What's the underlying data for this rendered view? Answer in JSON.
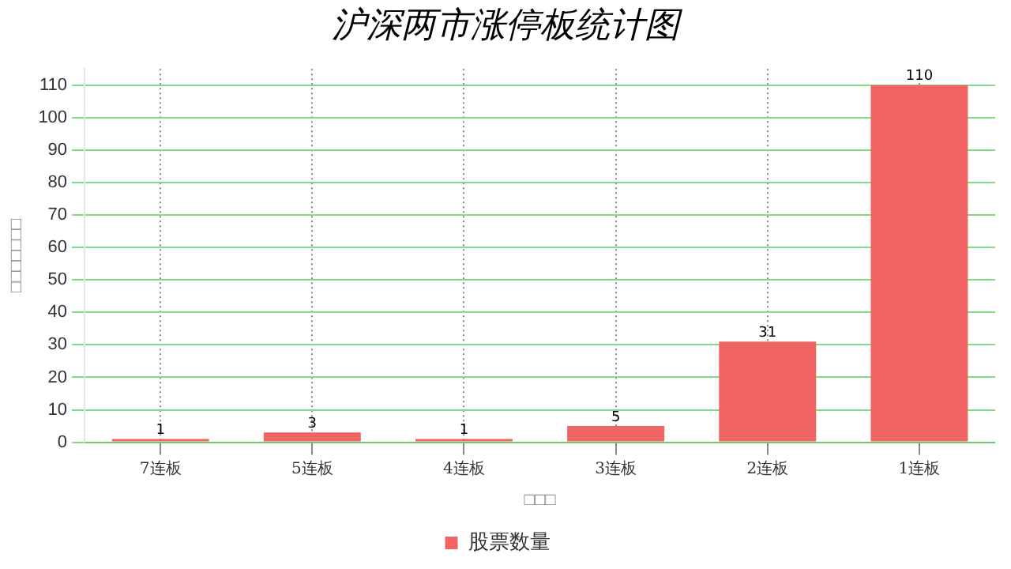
{
  "chart_data": {
    "type": "bar",
    "title": "沪深两市涨停板统计图",
    "xlabel": "□□□",
    "ylabel": "□□□□□□□",
    "categories": [
      "7连板",
      "5连板",
      "4连板",
      "3连板",
      "2连板",
      "1连板"
    ],
    "series": [
      {
        "name": "股票数量",
        "color": "#f06464",
        "values": [
          1,
          3,
          1,
          5,
          31,
          110
        ]
      }
    ],
    "ylim": [
      0,
      115
    ],
    "yticks": [
      0,
      10,
      20,
      30,
      40,
      50,
      60,
      70,
      80,
      90,
      100,
      110
    ],
    "grid": true,
    "legend": "bottom",
    "data_labels": true
  }
}
